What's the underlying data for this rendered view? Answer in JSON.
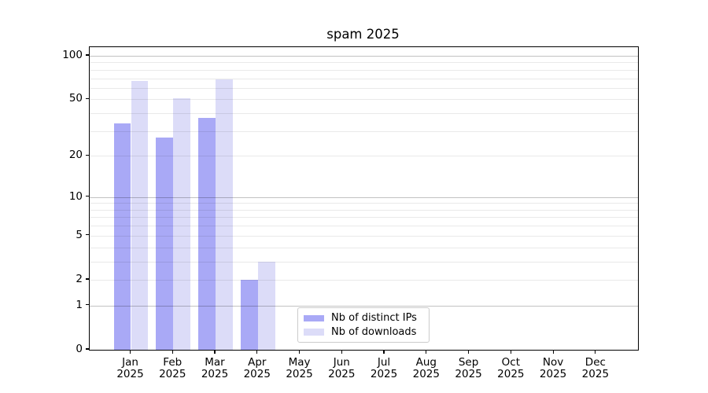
{
  "title": "spam 2025",
  "chart_data": {
    "type": "bar",
    "title": "spam 2025",
    "categories": [
      "Jan",
      "Feb",
      "Mar",
      "Apr",
      "May",
      "Jun",
      "Jul",
      "Aug",
      "Sep",
      "Oct",
      "Nov",
      "Dec"
    ],
    "category_year": "2025",
    "series": [
      {
        "name": "Nb of distinct IPs",
        "color": "#a9a9f6",
        "values": [
          34,
          27,
          37,
          2,
          0,
          0,
          0,
          0,
          0,
          0,
          0,
          0
        ]
      },
      {
        "name": "Nb of downloads",
        "color": "#dcdcf8",
        "values": [
          67,
          51,
          69,
          3,
          0,
          0,
          0,
          0,
          0,
          0,
          0,
          0
        ]
      }
    ],
    "xlabel": "",
    "ylabel": "",
    "yscale": "log10(1+x) with 0 at baseline",
    "yticks": [
      0,
      1,
      2,
      5,
      10,
      20,
      50,
      100
    ],
    "ylim": [
      0,
      115
    ],
    "major_grid_values": [
      1,
      10,
      100
    ],
    "minor_grid_values": [
      2,
      3,
      4,
      5,
      6,
      7,
      8,
      9,
      20,
      30,
      40,
      50,
      60,
      70,
      80,
      90
    ],
    "grid": "on",
    "legend_position": "inside lower-center"
  },
  "legend": {
    "items": [
      {
        "label": "Nb of distinct IPs"
      },
      {
        "label": "Nb of downloads"
      }
    ]
  }
}
